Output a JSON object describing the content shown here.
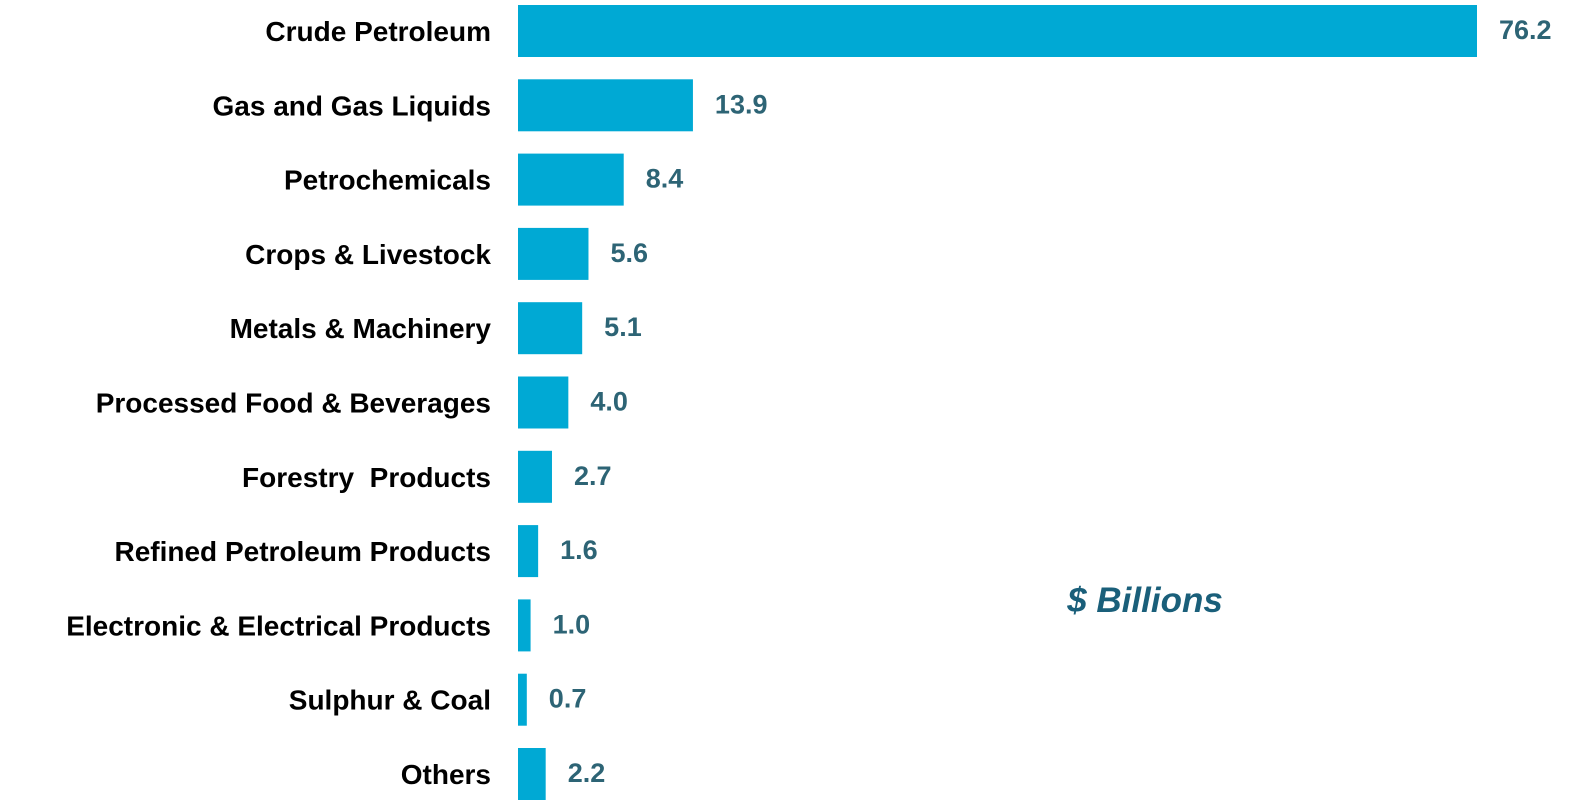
{
  "chart_data": {
    "type": "bar",
    "orientation": "horizontal",
    "categories": [
      "Crude Petroleum",
      "Gas and Gas Liquids",
      "Petrochemicals",
      "Crops & Livestock",
      "Metals & Machinery",
      "Processed Food & Beverages",
      "Forestry  Products",
      "Refined Petroleum Products",
      "Electronic & Electrical Products",
      "Sulphur & Coal",
      "Others"
    ],
    "values": [
      76.2,
      13.9,
      8.4,
      5.6,
      5.1,
      4.0,
      2.7,
      1.6,
      1.0,
      0.7,
      2.2
    ],
    "value_labels": [
      "76.2",
      "13.9",
      "8.4",
      "5.6",
      "5.1",
      "4.0",
      "2.7",
      "1.6",
      "1.0",
      "0.7",
      "2.2"
    ],
    "unit_note": "$ Billions",
    "title": "",
    "xlabel": "",
    "ylabel": "",
    "xlim": [
      0,
      76.2
    ],
    "grid": false,
    "legend": "none"
  },
  "colors": {
    "bar": "#00a9d4",
    "value_label": "#2d6475",
    "category_label": "#000000",
    "unit_note": "#1a5f7a"
  }
}
